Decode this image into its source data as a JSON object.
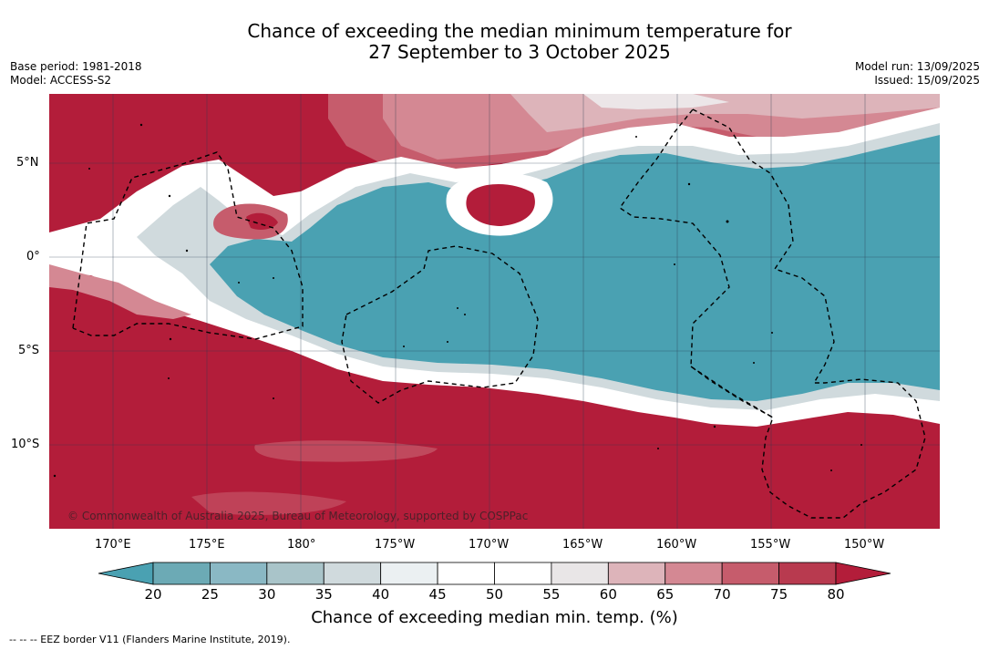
{
  "header": {
    "title_line1": "Chance of exceeding the median minimum temperature for",
    "title_line2": "27 September to 3 October 2025",
    "base_period": "Base period: 1981-2018",
    "model": "Model: ACCESS-S2",
    "model_run": "Model run: 13/09/2025",
    "issued": "Issued: 15/09/2025"
  },
  "map": {
    "copyright": "© Commonwealth of Australia 2025, Bureau of Meteorology, supported by COSPPac",
    "lat_labels": [
      "5°N",
      "0°",
      "5°S",
      "10°S"
    ],
    "lon_labels": [
      "170°E",
      "175°E",
      "180°",
      "175°W",
      "170°W",
      "165°W",
      "160°W",
      "155°W",
      "150°W"
    ]
  },
  "colorbar": {
    "ticks": [
      "20",
      "25",
      "30",
      "35",
      "40",
      "45",
      "50",
      "55",
      "60",
      "65",
      "70",
      "75",
      "80"
    ],
    "colors": [
      "#4aa1b2",
      "#6caab5",
      "#8ab8c4",
      "#a9c4c9",
      "#d0dadd",
      "#ebf0f2",
      "#ffffff",
      "#ffffff",
      "#e9e6e7",
      "#ddb4ba",
      "#d48893",
      "#c65c6c",
      "#b83a4f",
      "#b31d3a"
    ],
    "title": "Chance of exceeding median min. temp. (%)"
  },
  "footer": {
    "legend_text": "--  --  -- EEZ border V11 (Flanders Marine Institute, 2019)."
  }
}
